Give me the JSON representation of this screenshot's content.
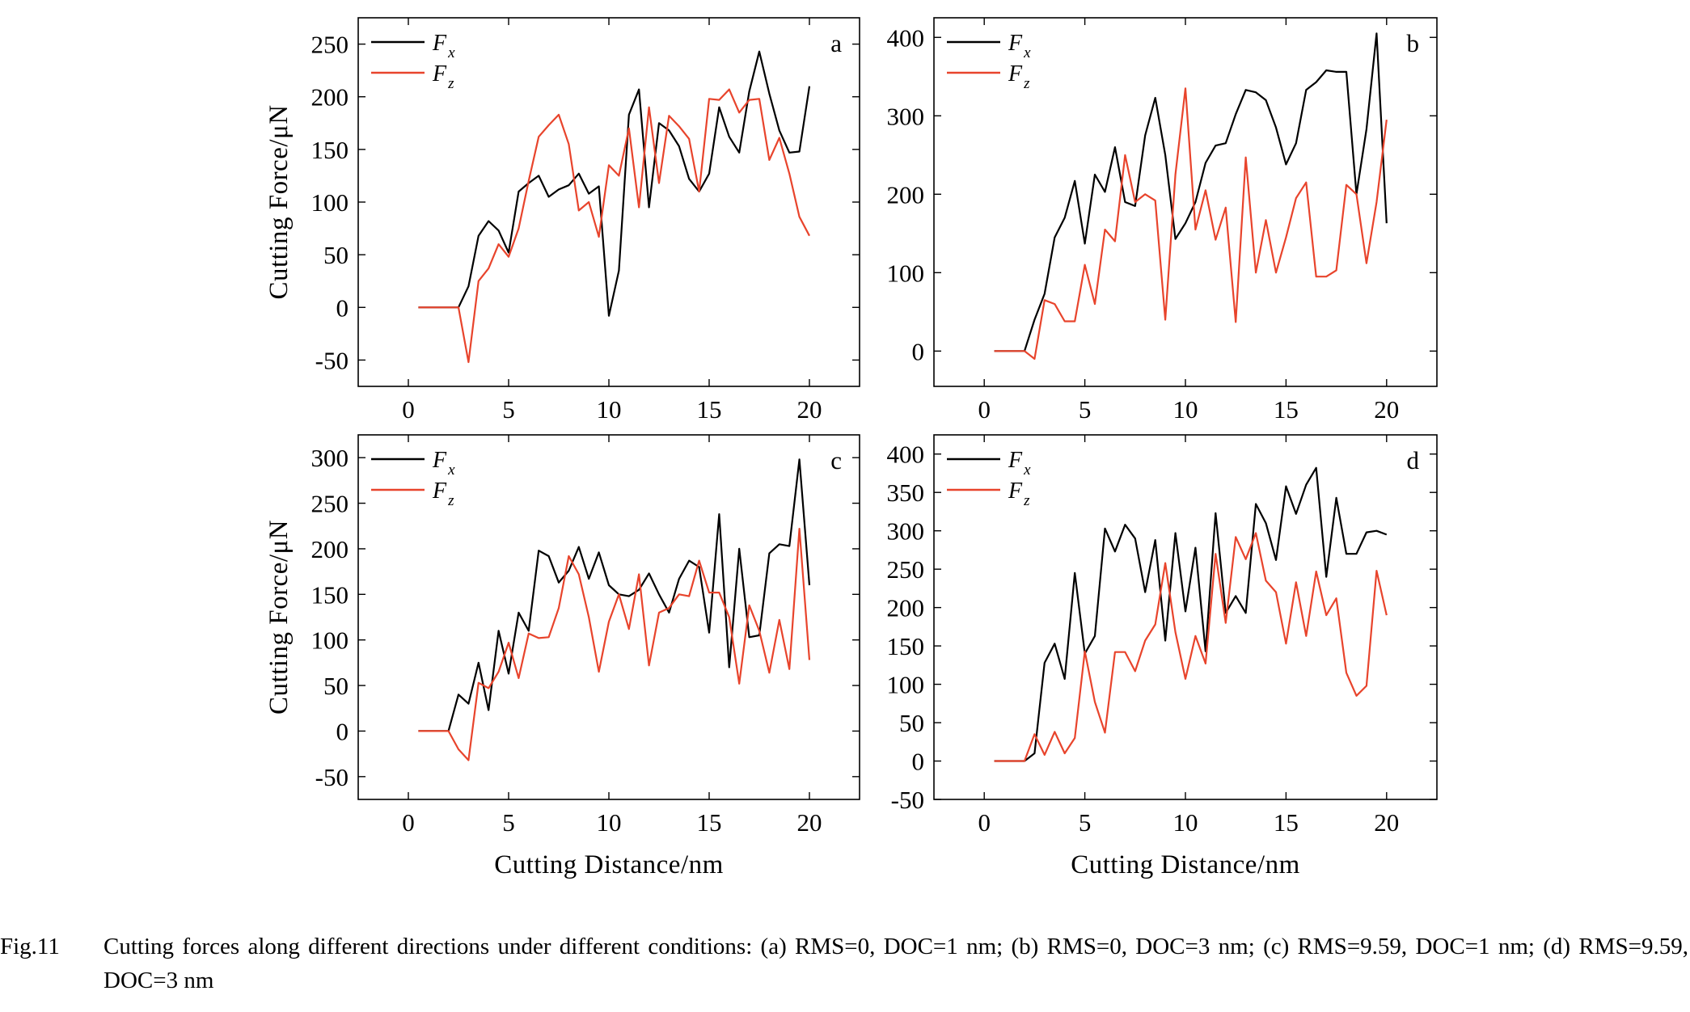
{
  "caption": {
    "number": "Fig.11",
    "text": "Cutting forces along different directions under different conditions: (a) RMS=0, DOC=1 nm; (b) RMS=0, DOC=3 nm; (c) RMS=9.59, DOC=1 nm; (d) RMS=9.59, DOC=3 nm"
  },
  "colors": {
    "fx": "#000000",
    "fz": "#e8442c"
  },
  "chart_data": [
    {
      "type": "line",
      "panel_label": "a",
      "xlabel": "",
      "ylabel": "Cutting Force/μN",
      "xlim": [
        -2.5,
        22.5
      ],
      "ylim": [
        -75,
        275
      ],
      "xticks": [
        0,
        5,
        10,
        15,
        20
      ],
      "yticks": [
        -50,
        0,
        50,
        100,
        150,
        200,
        250
      ],
      "legend_position": "top-left",
      "series": [
        {
          "name": "F",
          "sub": "x",
          "color_key": "fx",
          "x": [
            0.5,
            1,
            1.5,
            2,
            2.5,
            3,
            3.5,
            4,
            4.5,
            5,
            5.5,
            6,
            6.5,
            7,
            7.5,
            8,
            8.5,
            9,
            9.5,
            10,
            10.5,
            11,
            11.5,
            12,
            12.5,
            13,
            13.5,
            14,
            14.5,
            15,
            15.5,
            16,
            16.5,
            17,
            17.5,
            18,
            18.5,
            19,
            19.5,
            20
          ],
          "y": [
            0,
            0,
            0,
            0,
            0,
            20,
            68,
            82,
            73,
            52,
            110,
            118,
            125,
            105,
            112,
            116,
            127,
            108,
            115,
            -8,
            35,
            183,
            207,
            95,
            175,
            168,
            153,
            122,
            110,
            127,
            190,
            162,
            147,
            205,
            243,
            203,
            168,
            147,
            148,
            210
          ]
        },
        {
          "name": "F",
          "sub": "z",
          "color_key": "fz",
          "x": [
            0.5,
            1,
            1.5,
            2,
            2.5,
            3,
            3.5,
            4,
            4.5,
            5,
            5.5,
            6,
            6.5,
            7,
            7.5,
            8,
            8.5,
            9,
            9.5,
            10,
            10.5,
            11,
            11.5,
            12,
            12.5,
            13,
            13.5,
            14,
            14.5,
            15,
            15.5,
            16,
            16.5,
            17,
            17.5,
            18,
            18.5,
            19,
            19.5,
            20
          ],
          "y": [
            0,
            0,
            0,
            0,
            0,
            -52,
            25,
            37,
            60,
            48,
            75,
            120,
            162,
            173,
            183,
            155,
            92,
            100,
            67,
            135,
            125,
            170,
            95,
            190,
            118,
            182,
            172,
            160,
            110,
            198,
            197,
            207,
            185,
            197,
            198,
            140,
            161,
            127,
            86,
            68
          ]
        }
      ]
    },
    {
      "type": "line",
      "panel_label": "b",
      "xlabel": "",
      "ylabel": "",
      "xlim": [
        -2.5,
        22.5
      ],
      "ylim": [
        -45,
        425
      ],
      "xticks": [
        0,
        5,
        10,
        15,
        20
      ],
      "yticks": [
        0,
        100,
        200,
        300,
        400
      ],
      "legend_position": "top-left",
      "series": [
        {
          "name": "F",
          "sub": "x",
          "color_key": "fx",
          "x": [
            0.5,
            1,
            1.5,
            2,
            2.5,
            3,
            3.5,
            4,
            4.5,
            5,
            5.5,
            6,
            6.5,
            7,
            7.5,
            8,
            8.5,
            9,
            9.5,
            10,
            10.5,
            11,
            11.5,
            12,
            12.5,
            13,
            13.5,
            14,
            14.5,
            15,
            15.5,
            16,
            16.5,
            17,
            17.5,
            18,
            18.5,
            19,
            19.5,
            20
          ],
          "y": [
            0,
            0,
            0,
            0,
            40,
            73,
            145,
            170,
            217,
            137,
            225,
            203,
            260,
            190,
            185,
            275,
            323,
            250,
            143,
            163,
            190,
            240,
            262,
            265,
            302,
            333,
            330,
            320,
            285,
            238,
            265,
            333,
            343,
            358,
            356,
            356,
            200,
            283,
            405,
            163
          ]
        },
        {
          "name": "F",
          "sub": "z",
          "color_key": "fz",
          "x": [
            0.5,
            1,
            1.5,
            2,
            2.5,
            3,
            3.5,
            4,
            4.5,
            5,
            5.5,
            6,
            6.5,
            7,
            7.5,
            8,
            8.5,
            9,
            9.5,
            10,
            10.5,
            11,
            11.5,
            12,
            12.5,
            13,
            13.5,
            14,
            14.5,
            15,
            15.5,
            16,
            16.5,
            17,
            17.5,
            18,
            18.5,
            19,
            19.5,
            20
          ],
          "y": [
            0,
            0,
            0,
            0,
            -10,
            65,
            60,
            38,
            38,
            110,
            60,
            155,
            140,
            250,
            190,
            200,
            192,
            40,
            225,
            335,
            155,
            205,
            142,
            183,
            37,
            247,
            100,
            167,
            100,
            145,
            195,
            215,
            95,
            95,
            103,
            212,
            200,
            112,
            190,
            295
          ]
        }
      ]
    },
    {
      "type": "line",
      "panel_label": "c",
      "xlabel": "Cutting Distance/nm",
      "ylabel": "Cutting Force/μN",
      "xlim": [
        -2.5,
        22.5
      ],
      "ylim": [
        -75,
        325
      ],
      "xticks": [
        0,
        5,
        10,
        15,
        20
      ],
      "yticks": [
        -50,
        0,
        50,
        100,
        150,
        200,
        250,
        300
      ],
      "legend_position": "top-left",
      "series": [
        {
          "name": "F",
          "sub": "x",
          "color_key": "fx",
          "x": [
            0.5,
            1,
            1.5,
            2,
            2.5,
            3,
            3.5,
            4,
            4.5,
            5,
            5.5,
            6,
            6.5,
            7,
            7.5,
            8,
            8.5,
            9,
            9.5,
            10,
            10.5,
            11,
            11.5,
            12,
            12.5,
            13,
            13.5,
            14,
            14.5,
            15,
            15.5,
            16,
            16.5,
            17,
            17.5,
            18,
            18.5,
            19,
            19.5,
            20
          ],
          "y": [
            0,
            0,
            0,
            0,
            40,
            30,
            75,
            23,
            110,
            63,
            130,
            110,
            198,
            192,
            163,
            176,
            202,
            167,
            196,
            160,
            150,
            148,
            155,
            173,
            150,
            130,
            167,
            187,
            180,
            108,
            238,
            70,
            200,
            103,
            105,
            195,
            205,
            203,
            298,
            160
          ]
        },
        {
          "name": "F",
          "sub": "z",
          "color_key": "fz",
          "x": [
            0.5,
            1,
            1.5,
            2,
            2.5,
            3,
            3.5,
            4,
            4.5,
            5,
            5.5,
            6,
            6.5,
            7,
            7.5,
            8,
            8.5,
            9,
            9.5,
            10,
            10.5,
            11,
            11.5,
            12,
            12.5,
            13,
            13.5,
            14,
            14.5,
            15,
            15.5,
            16,
            16.5,
            17,
            17.5,
            18,
            18.5,
            19,
            19.5,
            20
          ],
          "y": [
            0,
            0,
            0,
            0,
            -20,
            -32,
            53,
            47,
            65,
            97,
            58,
            107,
            102,
            103,
            135,
            192,
            172,
            125,
            65,
            120,
            150,
            112,
            172,
            72,
            130,
            135,
            150,
            148,
            187,
            152,
            152,
            125,
            52,
            138,
            110,
            64,
            122,
            68,
            222,
            78
          ]
        }
      ]
    },
    {
      "type": "line",
      "panel_label": "d",
      "xlabel": "Cutting Distance/nm",
      "ylabel": "",
      "xlim": [
        -2.5,
        22.5
      ],
      "ylim": [
        -50,
        425
      ],
      "xticks": [
        0,
        5,
        10,
        15,
        20
      ],
      "yticks": [
        -50,
        0,
        50,
        100,
        150,
        200,
        250,
        300,
        350,
        400
      ],
      "legend_position": "top-left",
      "series": [
        {
          "name": "F",
          "sub": "x",
          "color_key": "fx",
          "x": [
            0.5,
            1,
            1.5,
            2,
            2.5,
            3,
            3.5,
            4,
            4.5,
            5,
            5.5,
            6,
            6.5,
            7,
            7.5,
            8,
            8.5,
            9,
            9.5,
            10,
            10.5,
            11,
            11.5,
            12,
            12.5,
            13,
            13.5,
            14,
            14.5,
            15,
            15.5,
            16,
            16.5,
            17,
            17.5,
            18,
            18.5,
            19,
            19.5,
            20
          ],
          "y": [
            0,
            0,
            0,
            0,
            10,
            128,
            153,
            107,
            245,
            140,
            163,
            303,
            273,
            308,
            290,
            220,
            288,
            157,
            297,
            195,
            278,
            143,
            323,
            193,
            215,
            193,
            335,
            310,
            262,
            358,
            322,
            360,
            382,
            240,
            343,
            270,
            270,
            298,
            300,
            295
          ]
        },
        {
          "name": "F",
          "sub": "z",
          "color_key": "fz",
          "x": [
            0.5,
            1,
            1.5,
            2,
            2.5,
            3,
            3.5,
            4,
            4.5,
            5,
            5.5,
            6,
            6.5,
            7,
            7.5,
            8,
            8.5,
            9,
            9.5,
            10,
            10.5,
            11,
            11.5,
            12,
            12.5,
            13,
            13.5,
            14,
            14.5,
            15,
            15.5,
            16,
            16.5,
            17,
            17.5,
            18,
            18.5,
            19,
            19.5,
            20
          ],
          "y": [
            0,
            0,
            0,
            0,
            35,
            8,
            38,
            10,
            30,
            143,
            77,
            37,
            142,
            142,
            117,
            157,
            178,
            258,
            168,
            107,
            163,
            127,
            270,
            180,
            292,
            263,
            297,
            235,
            220,
            153,
            233,
            163,
            247,
            190,
            212,
            115,
            85,
            98,
            248,
            190
          ]
        }
      ]
    }
  ]
}
